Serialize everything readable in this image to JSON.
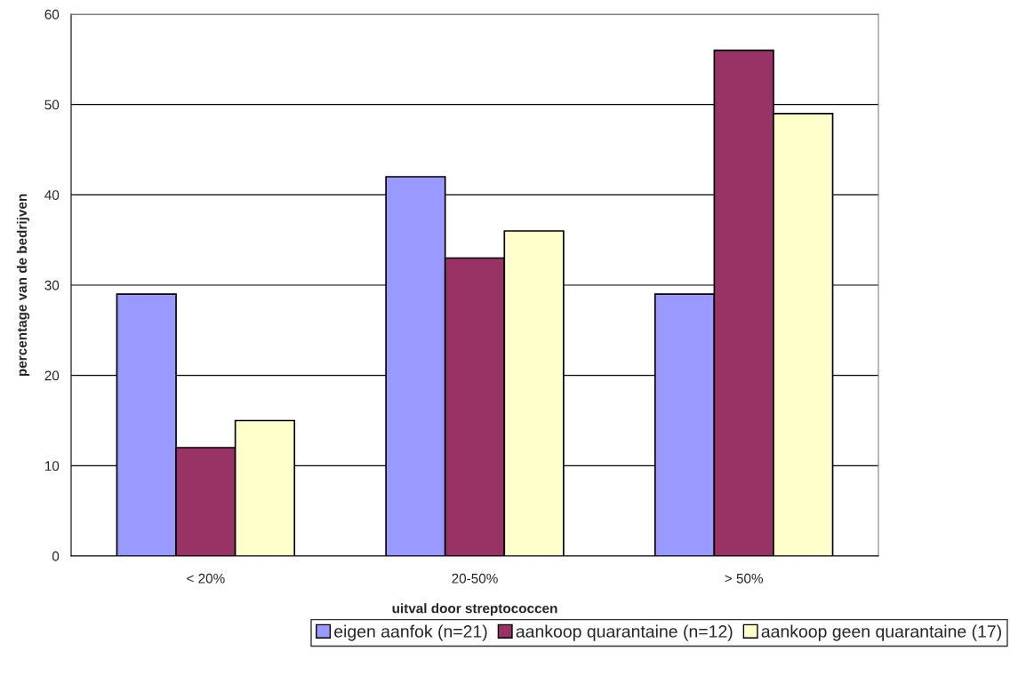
{
  "chart_data": {
    "type": "bar",
    "xlabel": "uitval door streptococcen",
    "ylabel": "percentage van de bedrijven",
    "categories": [
      "< 20%",
      "20-50%",
      "> 50%"
    ],
    "series": [
      {
        "name": "eigen aanfok (n=21)",
        "color": "#9999ff",
        "values": [
          29,
          42,
          29
        ]
      },
      {
        "name": "aankoop quarantaine (n=12)",
        "color": "#993366",
        "values": [
          12,
          33,
          56
        ]
      },
      {
        "name": "aankoop geen quarantaine (17)",
        "color": "#ffffcc",
        "values": [
          15,
          36,
          49
        ]
      }
    ],
    "ylim": [
      0,
      60
    ],
    "yticks": [
      0,
      10,
      20,
      30,
      40,
      50,
      60
    ],
    "grid": "y",
    "legend": "bottom"
  }
}
